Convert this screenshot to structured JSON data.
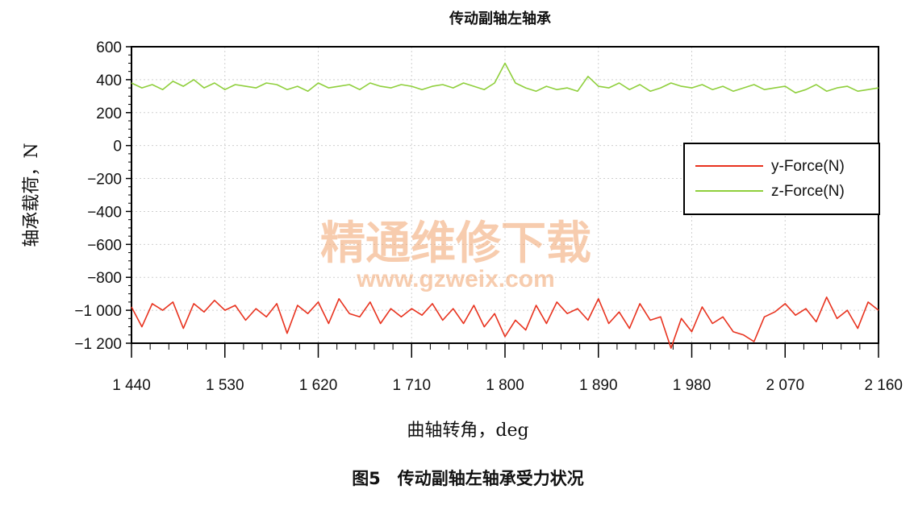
{
  "chart_data": {
    "type": "line",
    "title": "传动副轴左轴承",
    "xlabel": "曲轴转角，deg",
    "ylabel": "轴承载荷，N",
    "caption": "图5　传动副轴左轴承受力状况",
    "xlim": [
      1440,
      2160
    ],
    "ylim": [
      -1200,
      600
    ],
    "xticks": [
      1440,
      1530,
      1620,
      1710,
      1800,
      1890,
      1980,
      2070,
      2160
    ],
    "xtick_labels": [
      "1 440",
      "1 530",
      "1 620",
      "1 710",
      "1 800",
      "1 890",
      "1 980",
      "2 070",
      "2 160"
    ],
    "yticks": [
      600,
      400,
      200,
      0,
      -200,
      -400,
      -600,
      -800,
      -1000,
      -1200
    ],
    "ytick_labels": [
      "600",
      "400",
      "200",
      "0",
      "−200",
      "−400",
      "−600",
      "−800",
      "−1 000",
      "−1 200"
    ],
    "grid": true,
    "legend_position": "right-middle",
    "series": [
      {
        "name": "y-Force(N)",
        "color": "#e8321e",
        "x": [
          1440,
          1450,
          1460,
          1470,
          1480,
          1490,
          1500,
          1510,
          1520,
          1530,
          1540,
          1550,
          1560,
          1570,
          1580,
          1590,
          1600,
          1610,
          1620,
          1630,
          1640,
          1650,
          1660,
          1670,
          1680,
          1690,
          1700,
          1710,
          1720,
          1730,
          1740,
          1750,
          1760,
          1770,
          1780,
          1790,
          1800,
          1810,
          1820,
          1830,
          1840,
          1850,
          1860,
          1870,
          1880,
          1890,
          1900,
          1910,
          1920,
          1930,
          1940,
          1950,
          1960,
          1970,
          1980,
          1990,
          2000,
          2010,
          2020,
          2030,
          2040,
          2050,
          2060,
          2070,
          2080,
          2090,
          2100,
          2110,
          2120,
          2130,
          2140,
          2150,
          2160
        ],
        "values": [
          -980,
          -1100,
          -960,
          -1000,
          -950,
          -1110,
          -960,
          -1010,
          -940,
          -1000,
          -970,
          -1060,
          -990,
          -1040,
          -960,
          -1140,
          -970,
          -1020,
          -950,
          -1080,
          -930,
          -1020,
          -1040,
          -950,
          -1080,
          -990,
          -1040,
          -990,
          -1030,
          -960,
          -1060,
          -990,
          -1080,
          -970,
          -1100,
          -1020,
          -1160,
          -1060,
          -1120,
          -970,
          -1080,
          -950,
          -1020,
          -990,
          -1060,
          -930,
          -1080,
          -1010,
          -1110,
          -960,
          -1060,
          -1040,
          -1230,
          -1050,
          -1130,
          -980,
          -1080,
          -1040,
          -1130,
          -1150,
          -1190,
          -1040,
          -1010,
          -960,
          -1030,
          -990,
          -1070,
          -920,
          -1050,
          -1000,
          -1110,
          -950,
          -1000
        ]
      },
      {
        "name": "z-Force(N)",
        "color": "#8fcf3c",
        "x": [
          1440,
          1450,
          1460,
          1470,
          1480,
          1490,
          1500,
          1510,
          1520,
          1530,
          1540,
          1550,
          1560,
          1570,
          1580,
          1590,
          1600,
          1610,
          1620,
          1630,
          1640,
          1650,
          1660,
          1670,
          1680,
          1690,
          1700,
          1710,
          1720,
          1730,
          1740,
          1750,
          1760,
          1770,
          1780,
          1790,
          1800,
          1810,
          1820,
          1830,
          1840,
          1850,
          1860,
          1870,
          1880,
          1890,
          1900,
          1910,
          1920,
          1930,
          1940,
          1950,
          1960,
          1970,
          1980,
          1990,
          2000,
          2010,
          2020,
          2030,
          2040,
          2050,
          2060,
          2070,
          2080,
          2090,
          2100,
          2110,
          2120,
          2130,
          2140,
          2150,
          2160
        ],
        "values": [
          380,
          350,
          370,
          340,
          390,
          360,
          400,
          350,
          380,
          340,
          370,
          360,
          350,
          380,
          370,
          340,
          360,
          330,
          380,
          350,
          360,
          370,
          340,
          380,
          360,
          350,
          370,
          360,
          340,
          360,
          370,
          350,
          380,
          360,
          340,
          380,
          500,
          380,
          350,
          330,
          360,
          340,
          350,
          330,
          420,
          360,
          350,
          380,
          340,
          370,
          330,
          350,
          380,
          360,
          350,
          370,
          340,
          360,
          330,
          350,
          370,
          340,
          350,
          360,
          320,
          340,
          370,
          330,
          350,
          360,
          330,
          340,
          350
        ]
      }
    ]
  },
  "watermark": {
    "cn": "精通维修下载",
    "url": "www.gzweix.com"
  }
}
